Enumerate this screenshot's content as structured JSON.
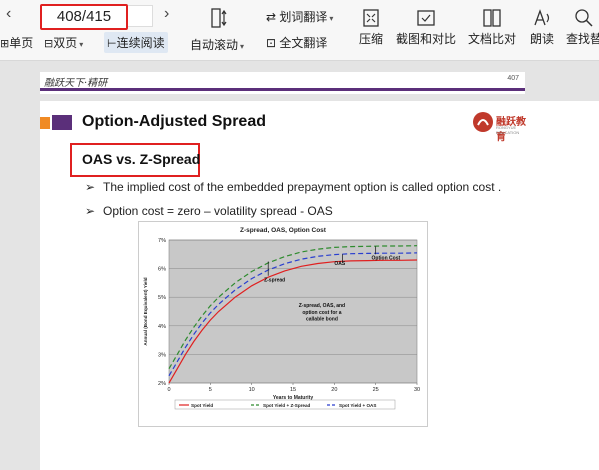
{
  "toolbar": {
    "page_indicator": "408/415",
    "single_page": "单页",
    "double_page": "双页",
    "continuous_read": "连续阅读",
    "auto_scroll": "自动滚动",
    "word_translate": "划词翻译",
    "full_translate": "全文翻译",
    "compress": "压缩",
    "screenshot_compare": "截图和对比",
    "doc_compare": "文档比对",
    "read_aloud": "朗读",
    "find_replace": "查找替"
  },
  "slide": {
    "header_script": "融跃天下·精研",
    "page_number": "407",
    "title": "Option-Adjusted Spread",
    "logo_text": "融跃教育",
    "logo_sub": "RONGYUE EDUCATION",
    "subtitle": "OAS vs. Z-Spread",
    "bullets": [
      "The implied cost of the embedded prepayment option is called option cost .",
      "Option cost = zero – volatility spread - OAS"
    ]
  },
  "chart_data": {
    "type": "line",
    "title": "Z-spread, OAS, Option Cost",
    "xlabel": "Years to Maturity",
    "ylabel": "Annual (Bond Equivalent) Yield",
    "xlim": [
      0,
      30
    ],
    "ylim": [
      2,
      7
    ],
    "x_ticks": [
      "0",
      "5",
      "10",
      "15",
      "20",
      "25",
      "30"
    ],
    "y_ticks": [
      "2%",
      "3%",
      "4%",
      "5%",
      "6%",
      "7%"
    ],
    "x": [
      0,
      1,
      2,
      3,
      4,
      5,
      6,
      8,
      10,
      12,
      14,
      16,
      18,
      20,
      22,
      24,
      26,
      28,
      30
    ],
    "series": [
      {
        "name": "Spot Yield",
        "color": "#e02020",
        "dash": "",
        "values": [
          2.0,
          2.5,
          3.0,
          3.45,
          3.85,
          4.2,
          4.5,
          5.0,
          5.4,
          5.7,
          5.92,
          6.08,
          6.18,
          6.24,
          6.27,
          6.28,
          6.29,
          6.29,
          6.3
        ]
      },
      {
        "name": "Spot Yield + Z-Spread",
        "color": "#2e8b2e",
        "dash": "5,3",
        "values": [
          2.5,
          3.0,
          3.5,
          3.95,
          4.35,
          4.7,
          5.0,
          5.5,
          5.9,
          6.2,
          6.42,
          6.58,
          6.68,
          6.74,
          6.77,
          6.78,
          6.79,
          6.79,
          6.8
        ]
      },
      {
        "name": "Spot Yield + OAS",
        "color": "#2a3fcf",
        "dash": "5,3",
        "values": [
          2.25,
          2.75,
          3.25,
          3.7,
          4.1,
          4.45,
          4.75,
          5.25,
          5.65,
          5.95,
          6.17,
          6.33,
          6.43,
          6.49,
          6.52,
          6.53,
          6.54,
          6.54,
          6.55
        ]
      }
    ],
    "annotations": [
      "Z-spread",
      "OAS",
      "Option Cost",
      "Z-spread, OAS, and",
      "option cost for a",
      "callable bond"
    ],
    "legend": [
      "Spot Yield",
      "Spot Yield + Z-Spread",
      "Spot Yield + OAS"
    ],
    "legend_position": "bottom",
    "grid": true,
    "plot_background": "#c8c8c8"
  }
}
